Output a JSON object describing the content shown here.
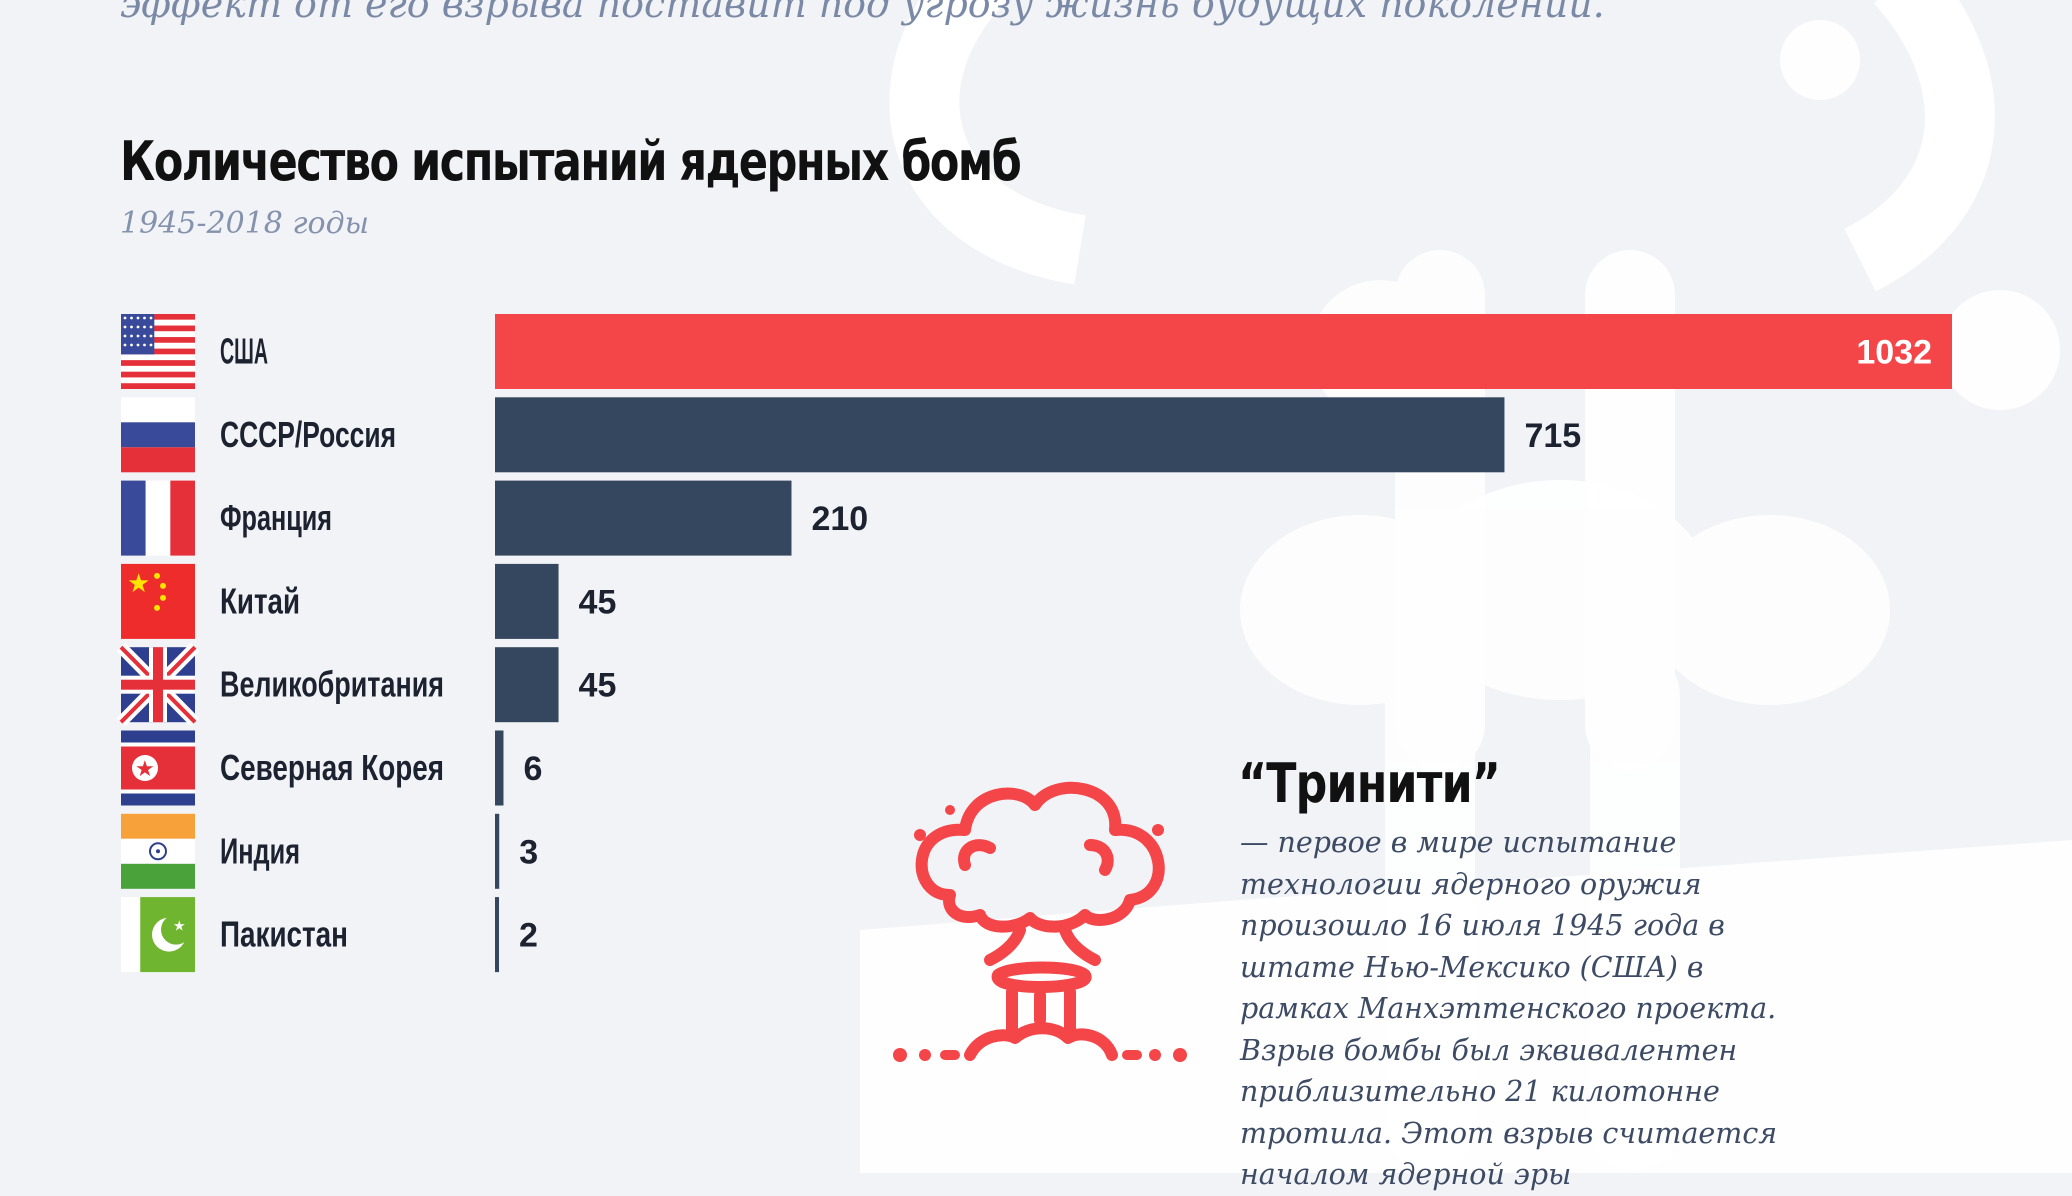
{
  "intro_text": "эффект от его взрыва поставит под угрозу жизнь будущих поколений.",
  "chart_data": {
    "type": "bar",
    "orientation": "horizontal",
    "title": "Количество испытаний ядерных бомб",
    "subtitle": "1945-2018 годы",
    "categories": [
      "США",
      "СССР/Россия",
      "Франция",
      "Китай",
      "Великобритания",
      "Северная Корея",
      "Индия",
      "Пакистан"
    ],
    "values": [
      1032,
      715,
      210,
      45,
      45,
      6,
      3,
      2
    ],
    "flags": [
      "flag-usa-icon",
      "flag-russia-icon",
      "flag-france-icon",
      "flag-china-icon",
      "flag-uk-icon",
      "flag-north-korea-icon",
      "flag-india-icon",
      "flag-pakistan-icon"
    ],
    "highlight_color": "#f44549",
    "bar_color": "#34475e",
    "xlim": [
      0,
      1032
    ]
  },
  "trinity": {
    "title": "“Тринити”",
    "text": "— первое в мире испытание технологии ядерного оружия произошло 16 июля 1945 года в штате Нью-Мексико (США) в рамках Манхэттенского проекта. Взрыв бомбы был эквивалентен приблизительно 21 килотонне тротила. Этот взрыв считается началом ядерной эры",
    "icon": "mushroom-cloud-icon",
    "icon_color": "#f44549"
  }
}
